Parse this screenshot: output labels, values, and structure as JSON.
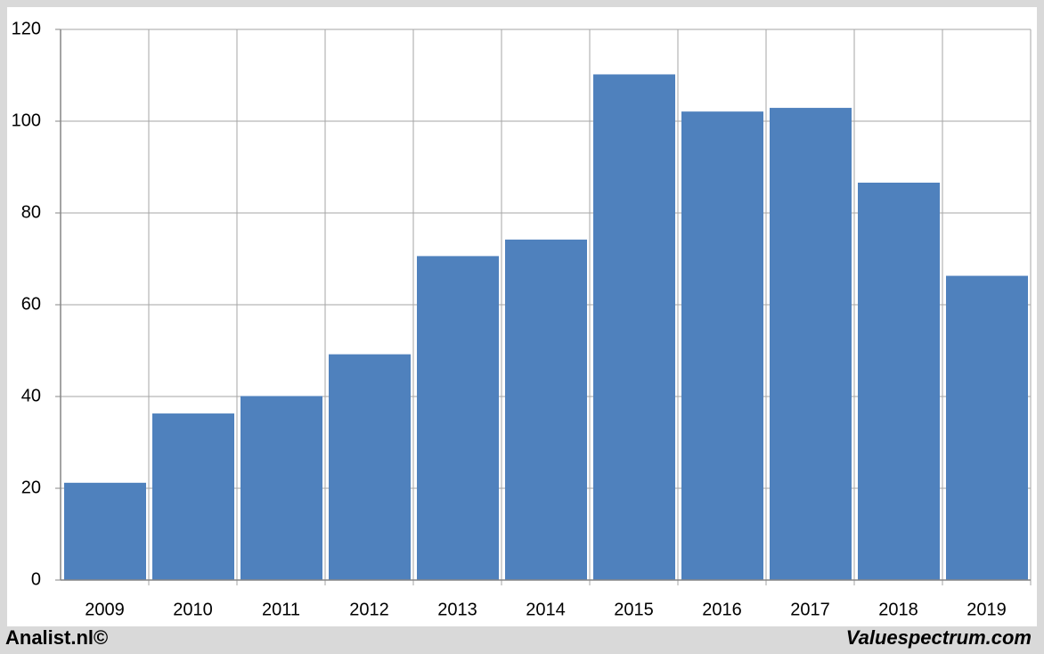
{
  "chart_data": {
    "type": "bar",
    "categories": [
      "2009",
      "2010",
      "2011",
      "2012",
      "2013",
      "2014",
      "2015",
      "2016",
      "2017",
      "2018",
      "2019"
    ],
    "values": [
      21.2,
      36.3,
      40.1,
      49.2,
      70.6,
      74.2,
      110.2,
      102.1,
      102.9,
      86.6,
      66.3
    ],
    "color": "#4f81bd",
    "ylim": [
      0,
      120
    ],
    "yticks": [
      0,
      20,
      40,
      60,
      80,
      100,
      120
    ],
    "grid": true
  },
  "footer": {
    "left": "Analist.nl©",
    "right": "Valuespectrum.com"
  }
}
